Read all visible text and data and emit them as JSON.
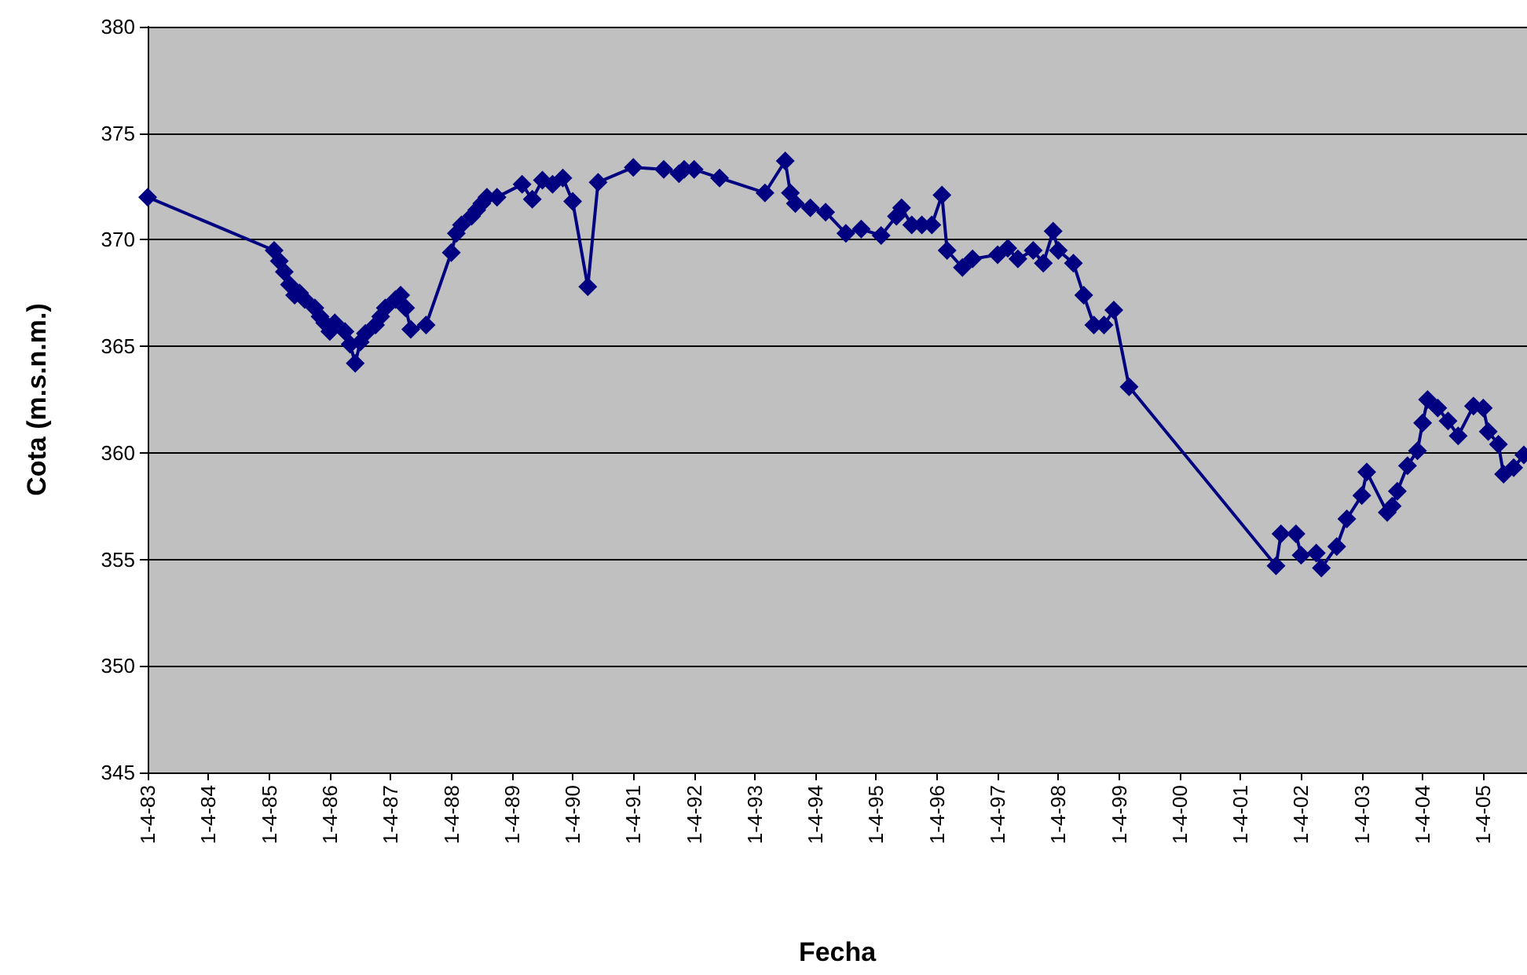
{
  "chart_data": {
    "type": "line",
    "xlabel": "Fecha",
    "ylabel": "Cota (m.s.n.m.)",
    "xlim": [
      "1983-04-01",
      "2005-12-20"
    ],
    "ylim": [
      345,
      380
    ],
    "xticks": [
      {
        "value": "1983-04-01",
        "label": "1-4-83"
      },
      {
        "value": "1984-04-01",
        "label": "1-4-84"
      },
      {
        "value": "1985-04-01",
        "label": "1-4-85"
      },
      {
        "value": "1986-04-01",
        "label": "1-4-86"
      },
      {
        "value": "1987-04-01",
        "label": "1-4-87"
      },
      {
        "value": "1988-04-01",
        "label": "1-4-88"
      },
      {
        "value": "1989-04-01",
        "label": "1-4-89"
      },
      {
        "value": "1990-04-01",
        "label": "1-4-90"
      },
      {
        "value": "1991-04-01",
        "label": "1-4-91"
      },
      {
        "value": "1992-04-01",
        "label": "1-4-92"
      },
      {
        "value": "1993-04-01",
        "label": "1-4-93"
      },
      {
        "value": "1994-04-01",
        "label": "1-4-94"
      },
      {
        "value": "1995-04-01",
        "label": "1-4-95"
      },
      {
        "value": "1996-04-01",
        "label": "1-4-96"
      },
      {
        "value": "1997-04-01",
        "label": "1-4-97"
      },
      {
        "value": "1998-04-01",
        "label": "1-4-98"
      },
      {
        "value": "1999-04-01",
        "label": "1-4-99"
      },
      {
        "value": "2000-04-01",
        "label": "1-4-00"
      },
      {
        "value": "2001-04-01",
        "label": "1-4-01"
      },
      {
        "value": "2002-04-01",
        "label": "1-4-02"
      },
      {
        "value": "2003-04-01",
        "label": "1-4-03"
      },
      {
        "value": "2004-04-01",
        "label": "1-4-04"
      },
      {
        "value": "2005-04-01",
        "label": "1-4-05"
      }
    ],
    "yticks": [
      345,
      350,
      355,
      360,
      365,
      370,
      375,
      380
    ],
    "grid": "y",
    "marker": "diamond",
    "line_style": "solid",
    "series": [
      {
        "color": "#000080",
        "x": [
          "1983-04",
          "1985-05",
          "1985-06",
          "1985-07",
          "1985-08",
          "1985-09",
          "1985-10",
          "1985-11",
          "1986-01",
          "1986-02",
          "1986-03",
          "1986-04",
          "1986-05",
          "1986-07",
          "1986-08",
          "1986-09",
          "1986-10",
          "1986-11",
          "1987-01",
          "1987-02",
          "1987-03",
          "1987-05",
          "1987-06",
          "1987-07",
          "1987-08",
          "1987-11",
          "1988-04",
          "1988-05",
          "1988-06",
          "1988-08",
          "1988-09",
          "1988-10",
          "1988-11",
          "1989-01",
          "1989-06",
          "1989-08",
          "1989-10",
          "1989-12",
          "1990-02",
          "1990-04",
          "1990-07",
          "1990-09",
          "1991-04",
          "1991-10",
          "1992-01",
          "1992-02",
          "1992-04",
          "1992-09",
          "1993-06",
          "1993-10",
          "1993-11",
          "1993-12",
          "1994-03",
          "1994-06",
          "1994-10",
          "1995-01",
          "1995-05",
          "1995-08",
          "1995-09",
          "1995-11",
          "1996-01",
          "1996-03",
          "1996-05",
          "1996-06",
          "1996-09",
          "1996-11",
          "1997-04",
          "1997-06",
          "1997-08",
          "1997-11",
          "1998-01",
          "1998-03",
          "1998-04",
          "1998-07",
          "1998-09",
          "1998-11",
          "1999-01",
          "1999-03",
          "1999-06",
          "2001-11",
          "2001-12",
          "2002-03",
          "2002-04",
          "2002-07",
          "2002-08",
          "2002-11",
          "2003-01",
          "2003-04",
          "2003-05",
          "2003-09",
          "2003-10",
          "2003-11",
          "2004-01",
          "2004-03",
          "2004-04",
          "2004-05",
          "2004-07",
          "2004-09",
          "2004-11",
          "2005-02",
          "2005-04",
          "2005-05",
          "2005-07",
          "2005-08",
          "2005-10",
          "2005-12"
        ],
        "values": [
          372.0,
          369.5,
          369.0,
          368.5,
          367.9,
          367.4,
          367.5,
          367.2,
          366.8,
          366.4,
          366.1,
          365.7,
          366.1,
          365.7,
          365.1,
          364.2,
          365.2,
          365.6,
          366.0,
          366.4,
          366.8,
          367.2,
          367.4,
          366.8,
          365.8,
          366.0,
          369.4,
          370.3,
          370.7,
          371.1,
          371.4,
          371.7,
          372.0,
          372.0,
          372.6,
          371.9,
          372.8,
          372.6,
          372.9,
          371.8,
          367.8,
          372.7,
          373.4,
          373.3,
          373.1,
          373.3,
          373.3,
          372.9,
          372.2,
          373.7,
          372.2,
          371.7,
          371.5,
          371.3,
          370.3,
          370.5,
          370.2,
          371.1,
          371.5,
          370.7,
          370.7,
          370.7,
          372.1,
          369.5,
          368.7,
          369.1,
          369.3,
          369.6,
          369.1,
          369.5,
          368.9,
          370.4,
          369.5,
          368.9,
          367.4,
          366.0,
          366.0,
          366.7,
          363.1,
          354.7,
          356.2,
          356.2,
          355.2,
          355.3,
          354.6,
          355.6,
          356.9,
          358.0,
          359.1,
          357.2,
          357.5,
          358.2,
          359.4,
          360.1,
          361.4,
          362.5,
          362.1,
          361.5,
          360.8,
          362.2,
          362.1,
          361.0,
          360.4,
          359.0,
          359.3,
          359.9
        ]
      }
    ]
  }
}
